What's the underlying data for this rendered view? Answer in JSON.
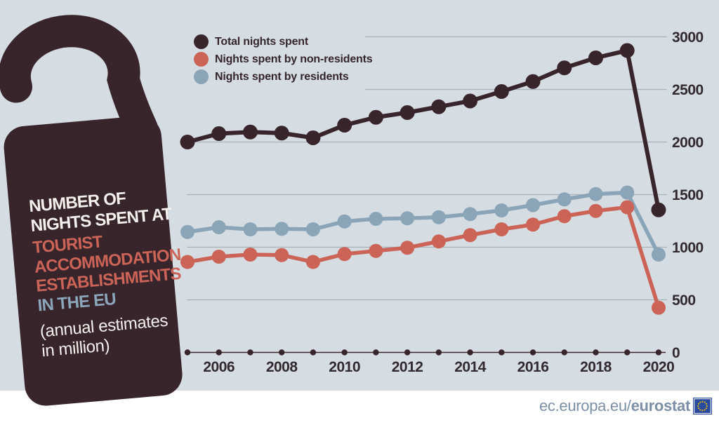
{
  "colors": {
    "page_bg": "#ffffff",
    "chart_bg": "#d5dce2",
    "dark": "#38252b",
    "red": "#cb6457",
    "blue": "#8aa4b8",
    "grid": "#a9b3bb",
    "tick_text": "#322a2e",
    "footer_text": "#7d8fa4",
    "flag_blue": "#2a4a9e",
    "flag_stars": "#f5c400"
  },
  "hanger": {
    "line1": "NUMBER OF",
    "line2": "NIGHTS SPENT AT",
    "line3": "TOURIST",
    "line4": "ACCOMMODATION",
    "line5": "ESTABLISHMENTS",
    "line6": "IN THE EU",
    "sub1": "(annual estimates",
    "sub2": "in million)"
  },
  "legend": {
    "items": [
      {
        "label": "Total nights spent",
        "color": "#38252b"
      },
      {
        "label": "Nights spent by non-residents",
        "color": "#cb6457"
      },
      {
        "label": "Nights spent by residents",
        "color": "#8aa4b8"
      }
    ]
  },
  "footer": {
    "url_regular": "ec.europa.eu/",
    "url_bold": "eurostat"
  },
  "chart_data": {
    "type": "line",
    "title": "Number of nights spent at tourist accommodation establishments in the EU (annual estimates in million)",
    "x": [
      2005,
      2006,
      2007,
      2008,
      2009,
      2010,
      2011,
      2012,
      2013,
      2014,
      2015,
      2016,
      2017,
      2018,
      2019,
      2020
    ],
    "x_tick_labels": [
      "2006",
      "2008",
      "2010",
      "2012",
      "2014",
      "2016",
      "2018",
      "2020"
    ],
    "series": [
      {
        "name": "Total nights spent",
        "color": "#38252b",
        "values": [
          2000,
          2080,
          2095,
          2085,
          2040,
          2160,
          2235,
          2280,
          2335,
          2390,
          2480,
          2575,
          2705,
          2800,
          2870,
          1355
        ]
      },
      {
        "name": "Nights spent by non-residents",
        "color": "#cb6457",
        "values": [
          860,
          910,
          930,
          925,
          860,
          935,
          965,
          995,
          1055,
          1115,
          1170,
          1215,
          1295,
          1345,
          1380,
          425
        ]
      },
      {
        "name": "Nights spent by residents",
        "color": "#8aa4b8",
        "values": [
          1145,
          1190,
          1170,
          1175,
          1170,
          1245,
          1270,
          1275,
          1285,
          1315,
          1350,
          1400,
          1455,
          1505,
          1520,
          930
        ]
      }
    ],
    "y_ticks": [
      0,
      500,
      1000,
      1500,
      2000,
      2500,
      3000
    ],
    "ylim": [
      0,
      3000
    ],
    "xlabel": "",
    "ylabel": "",
    "grid": true,
    "legend_position": "top-left",
    "y_axis_side": "right"
  }
}
